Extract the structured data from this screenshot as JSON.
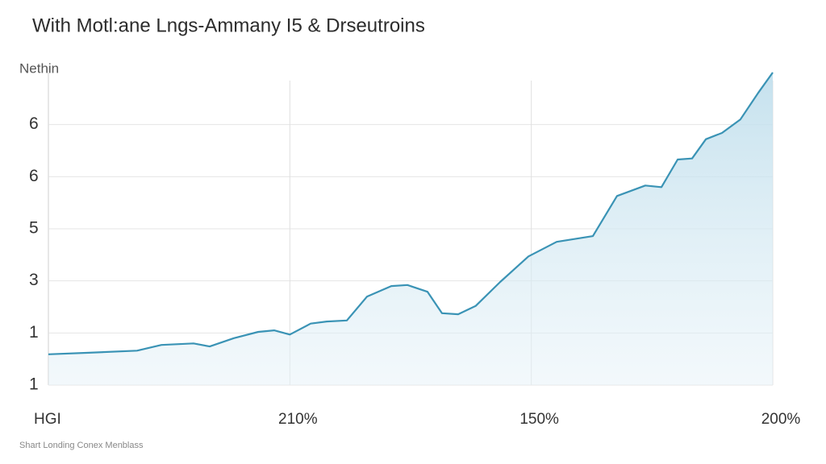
{
  "chart_data": {
    "type": "area",
    "title": "With Motl:ane Lngs-Ammany I5 & Drseutroins",
    "y_label": "Nethin",
    "footnote": "Shart Londing Conex Menblass",
    "color": "#3a93b5",
    "grid": true,
    "xlim": [
      0,
      3
    ],
    "xticks": [
      {
        "value": 0,
        "label": "HGI"
      },
      {
        "value": 1,
        "label": "210%"
      },
      {
        "value": 2,
        "label": "150%"
      },
      {
        "value": 3,
        "label": "200%"
      }
    ],
    "ylim": [
      1,
      7
    ],
    "yticks": [
      1,
      {
        "value": 2,
        "label": "1"
      },
      {
        "value": 3,
        "label": "3"
      },
      {
        "value": 4,
        "label": "5"
      },
      {
        "value": 5,
        "label": "6"
      },
      6
    ],
    "x": [
      0,
      0.167,
      0.367,
      0.468,
      0.601,
      0.668,
      0.768,
      0.869,
      0.935,
      1.0,
      1.086,
      1.153,
      1.236,
      1.32,
      1.42,
      1.487,
      1.57,
      1.63,
      1.697,
      1.77,
      1.871,
      1.988,
      2.105,
      2.255,
      2.355,
      2.472,
      2.539,
      2.606,
      2.666,
      2.723,
      2.79,
      2.866,
      2.94,
      3.0
    ],
    "values": [
      1.59,
      1.62,
      1.66,
      1.77,
      1.8,
      1.74,
      1.9,
      2.02,
      2.05,
      1.97,
      2.18,
      2.22,
      2.24,
      2.7,
      2.9,
      2.92,
      2.79,
      2.38,
      2.36,
      2.52,
      2.98,
      3.47,
      3.75,
      3.86,
      4.63,
      4.83,
      4.8,
      5.33,
      5.35,
      5.72,
      5.84,
      6.1,
      6.61,
      7.0
    ]
  }
}
